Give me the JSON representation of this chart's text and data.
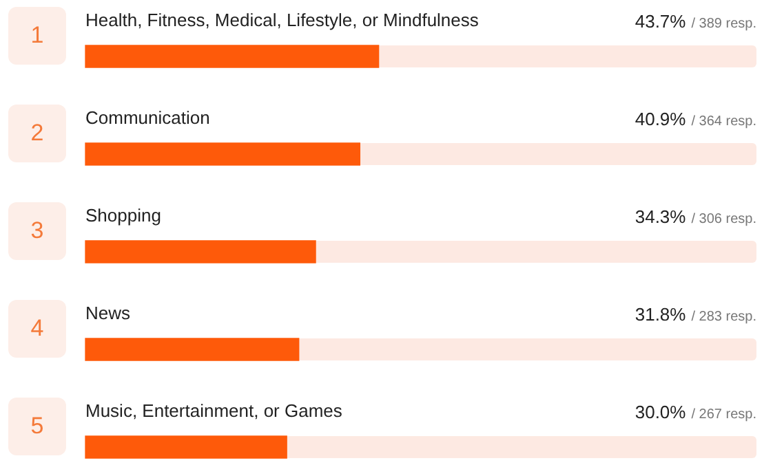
{
  "chart_data": {
    "type": "bar",
    "orientation": "horizontal",
    "categories": [
      "Health, Fitness, Medical, Lifestyle, or Mindfulness",
      "Communication",
      "Shopping",
      "News",
      "Music, Entertainment, or Games"
    ],
    "values": [
      43.7,
      40.9,
      34.3,
      31.8,
      30.0
    ],
    "value_labels": [
      "43.7%",
      "40.9%",
      "34.3%",
      "31.8%",
      "30.0%"
    ],
    "color": "#fe5a0a",
    "xlim": [
      0,
      100
    ],
    "tick_labels": false,
    "legend": false,
    "annotations": [
      "1",
      "/ 389 resp.",
      "2",
      "/ 364 resp.",
      "3",
      "/ 306 resp.",
      "4",
      "/ 283 resp.",
      "5",
      "/ 267 resp."
    ]
  }
}
